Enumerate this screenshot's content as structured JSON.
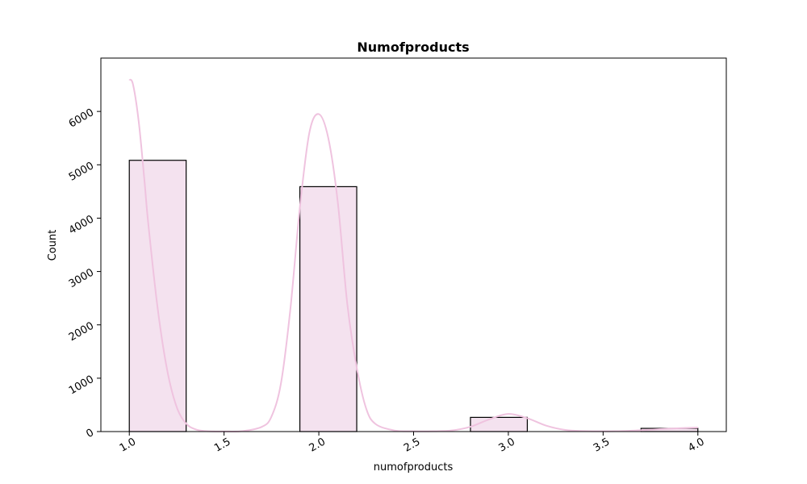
{
  "chart_data": {
    "type": "bar",
    "title": "Numofproducts",
    "xlabel": "numofproducts",
    "ylabel": "Count",
    "xlim": [
      0.85,
      4.15
    ],
    "ylim": [
      0,
      7000
    ],
    "x_ticks": [
      "1.0",
      "1.5",
      "2.0",
      "2.5",
      "3.0",
      "3.5",
      "4.0"
    ],
    "y_ticks": [
      "0",
      "1000",
      "2000",
      "3000",
      "4000",
      "5000",
      "6000"
    ],
    "bins": [
      {
        "x0": 1.0,
        "x1": 1.3,
        "value": 5084
      },
      {
        "x0": 1.9,
        "x1": 2.2,
        "value": 4590
      },
      {
        "x0": 2.8,
        "x1": 3.1,
        "value": 266
      },
      {
        "x0": 3.7,
        "x1": 4.0,
        "value": 60
      }
    ],
    "kde": {
      "x": [
        1.0,
        1.02,
        1.05,
        1.08,
        1.1,
        1.15,
        1.2,
        1.25,
        1.3,
        1.35,
        1.4,
        1.5,
        1.6,
        1.7,
        1.75,
        1.8,
        1.85,
        1.9,
        1.95,
        2.0,
        2.05,
        2.1,
        2.15,
        2.2,
        2.25,
        2.3,
        2.4,
        2.5,
        2.6,
        2.7,
        2.8,
        2.9,
        3.0,
        3.1,
        3.2,
        3.3,
        3.4,
        3.5,
        3.6,
        3.7,
        3.8,
        3.9,
        4.0
      ],
      "y": [
        6600,
        6500,
        5800,
        4700,
        3900,
        2300,
        1150,
        460,
        150,
        40,
        10,
        2,
        10,
        90,
        280,
        900,
        2300,
        4200,
        5600,
        5950,
        5500,
        4300,
        2400,
        1200,
        430,
        140,
        20,
        5,
        5,
        20,
        90,
        230,
        330,
        250,
        110,
        30,
        10,
        5,
        10,
        25,
        45,
        62,
        75
      ]
    },
    "bar_color": "#f4e2ef",
    "bar_edge_color": "#000000",
    "kde_color": "#efc3df",
    "grid": false,
    "tick_rotation": -30
  }
}
